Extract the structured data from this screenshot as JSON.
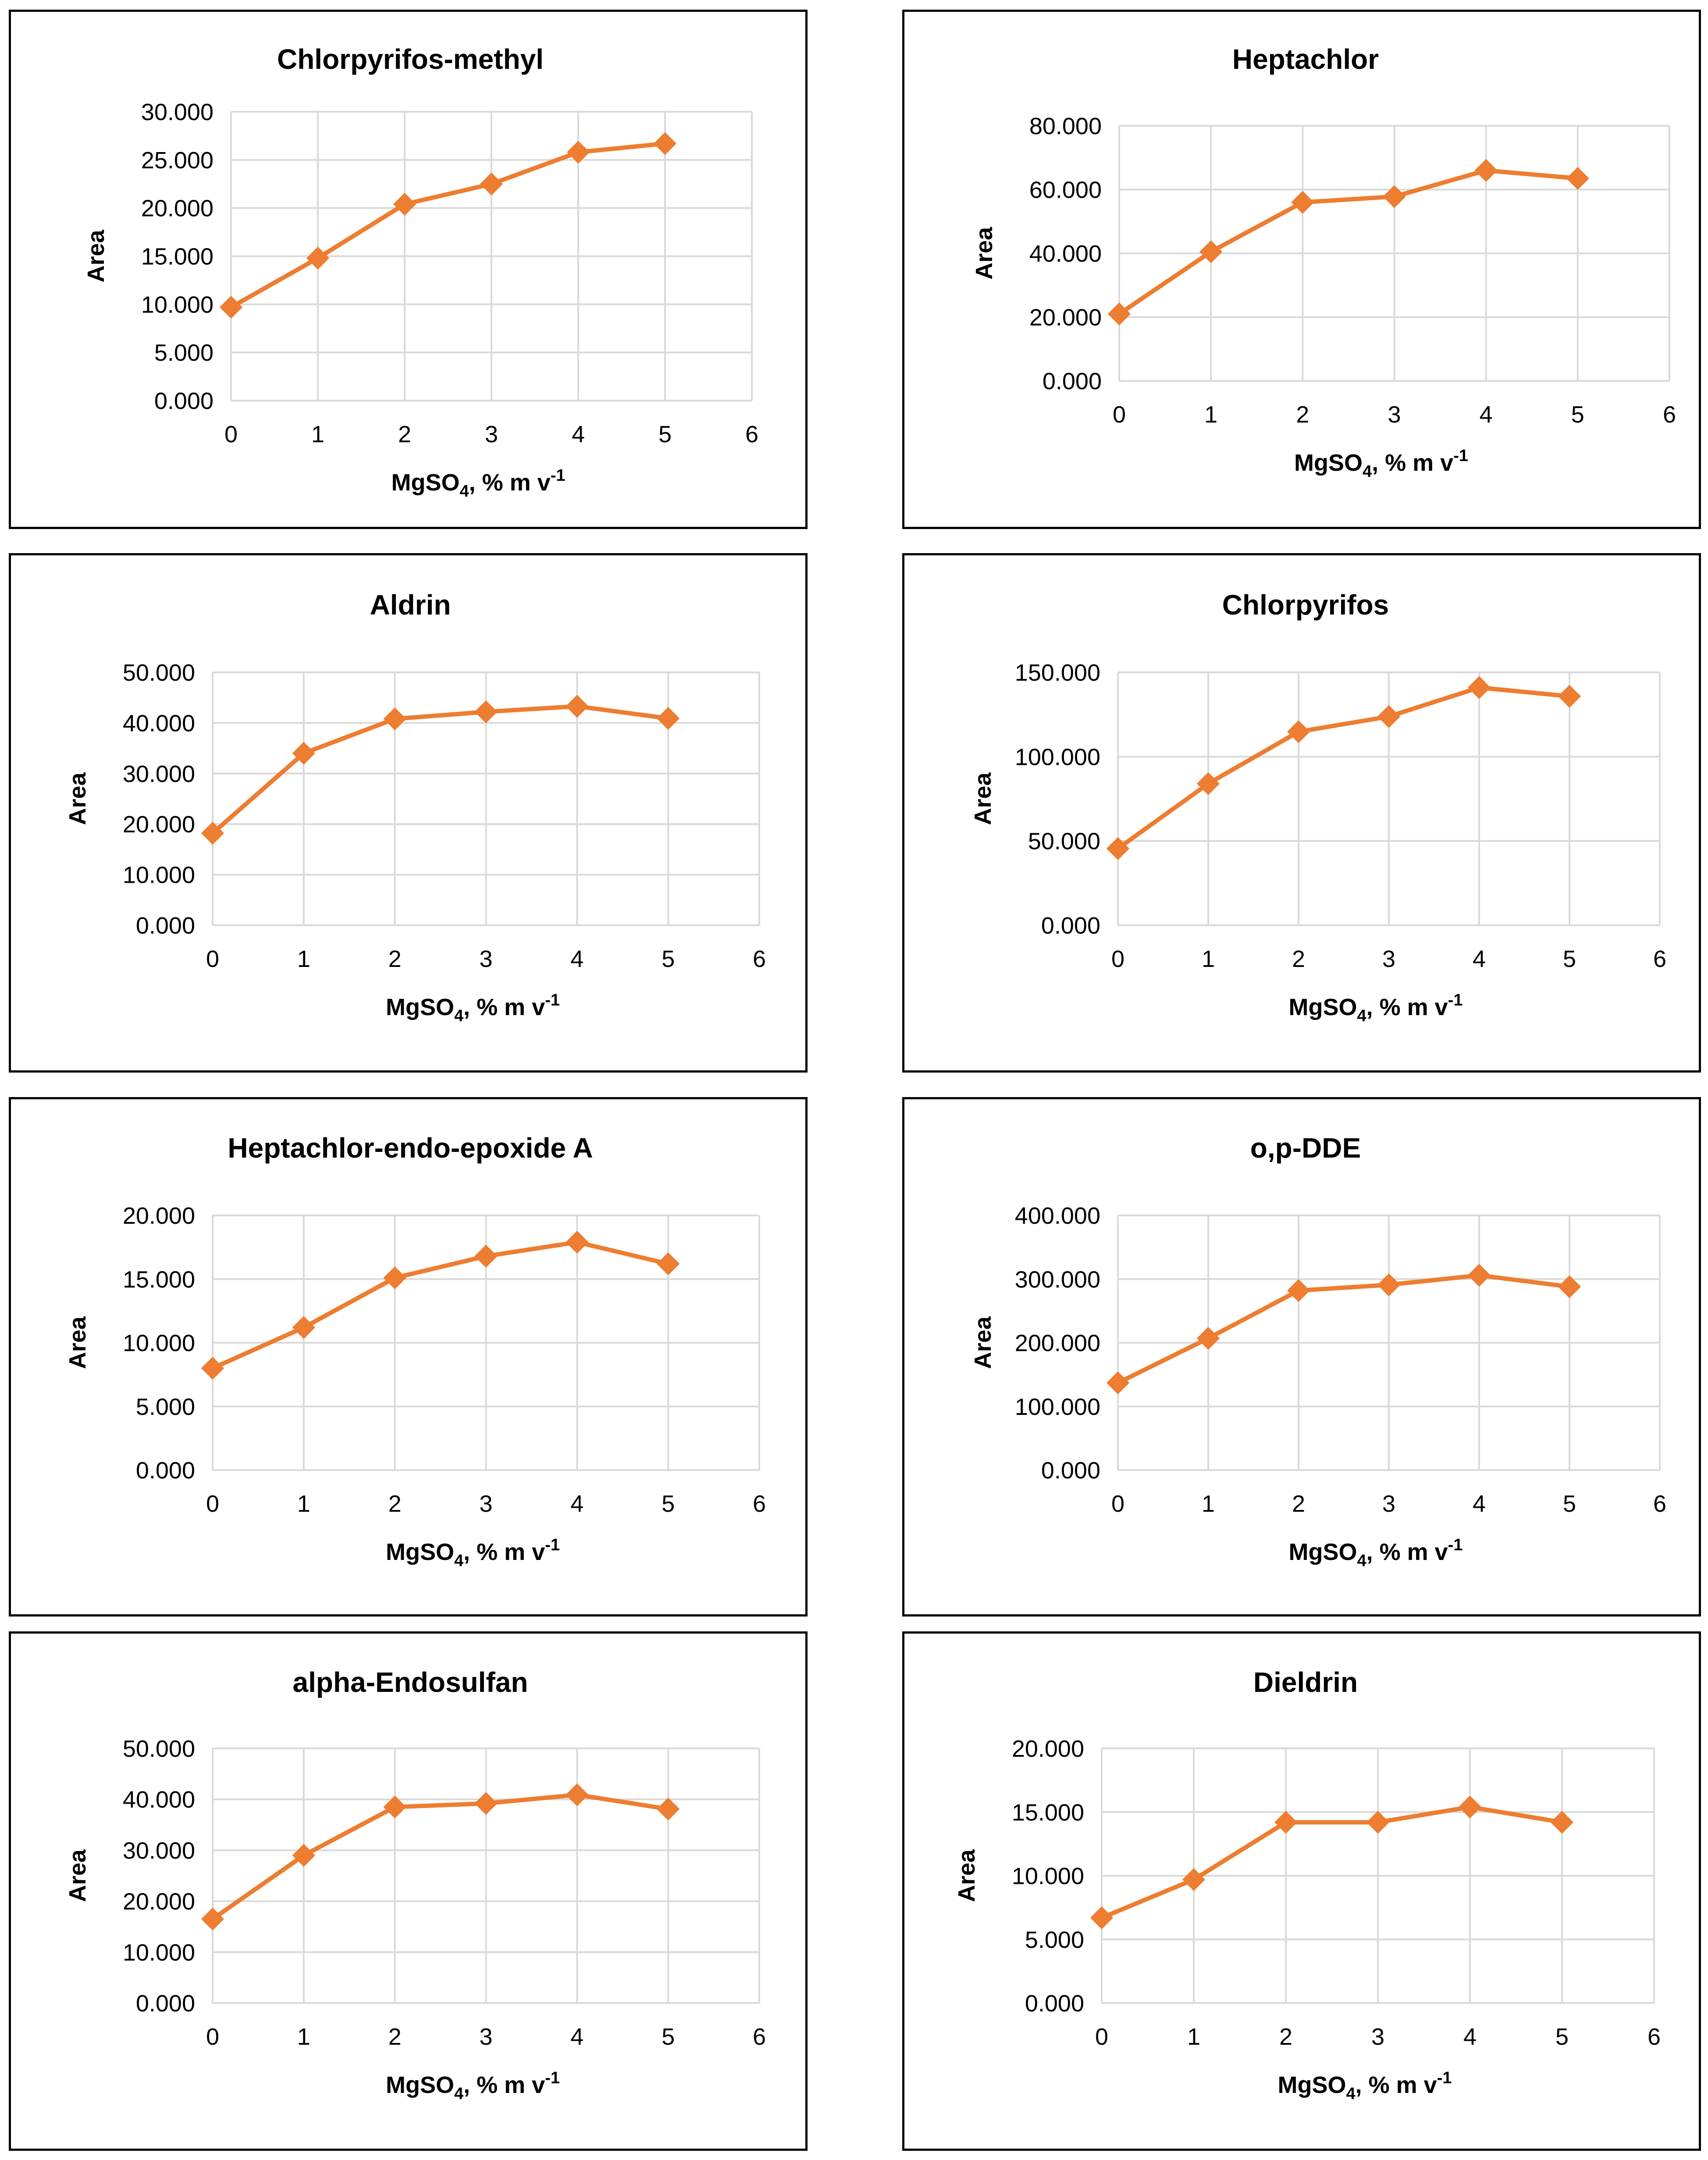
{
  "series_color": "#ED7D31",
  "chart_data": [
    {
      "type": "line",
      "title": "Chlorpyrifos-methyl",
      "xlabel": "MgSO",
      "xlabel_subscript": "4",
      "xlabel_suffix": ", % m v",
      "xlabel_superscript": "-1",
      "ylabel": "Area",
      "x": [
        0,
        1,
        2,
        3,
        4,
        5
      ],
      "values": [
        9.7,
        14.8,
        20.4,
        22.5,
        25.8,
        26.7
      ],
      "xlim": [
        0,
        6
      ],
      "xticks": [
        "0",
        "1",
        "2",
        "3",
        "4",
        "5",
        "6"
      ],
      "ylim": [
        0,
        30
      ],
      "yticks": [
        "0.000",
        "5.000",
        "10.000",
        "15.000",
        "20.000",
        "25.000",
        "30.000"
      ],
      "grid": true,
      "legend": "none"
    },
    {
      "type": "line",
      "title": "Heptachlor",
      "xlabel": "MgSO",
      "xlabel_subscript": "4",
      "xlabel_suffix": ", % m v",
      "xlabel_superscript": "-1",
      "ylabel": "Area",
      "x": [
        0,
        1,
        2,
        3,
        4,
        5
      ],
      "values": [
        21.0,
        40.5,
        56.0,
        57.8,
        66.0,
        63.5
      ],
      "xlim": [
        0,
        6
      ],
      "xticks": [
        "0",
        "1",
        "2",
        "3",
        "4",
        "5",
        "6"
      ],
      "ylim": [
        0,
        80
      ],
      "yticks": [
        "0.000",
        "20.000",
        "40.000",
        "60.000",
        "80.000"
      ],
      "grid": true,
      "legend": "none"
    },
    {
      "type": "line",
      "title": "Aldrin",
      "xlabel": "MgSO",
      "xlabel_subscript": "4",
      "xlabel_suffix": ", % m v",
      "xlabel_superscript": "-1",
      "ylabel": "Area",
      "x": [
        0,
        1,
        2,
        3,
        4,
        5
      ],
      "values": [
        18.2,
        34.0,
        40.8,
        42.2,
        43.3,
        40.9
      ],
      "xlim": [
        0,
        6
      ],
      "xticks": [
        "0",
        "1",
        "2",
        "3",
        "4",
        "5",
        "6"
      ],
      "ylim": [
        0,
        50
      ],
      "yticks": [
        "0.000",
        "10.000",
        "20.000",
        "30.000",
        "40.000",
        "50.000"
      ],
      "grid": true,
      "legend": "none"
    },
    {
      "type": "line",
      "title": "Chlorpyrifos",
      "xlabel": "MgSO",
      "xlabel_subscript": "4",
      "xlabel_suffix": ", % m v",
      "xlabel_superscript": "-1",
      "ylabel": "Area",
      "x": [
        0,
        1,
        2,
        3,
        4,
        5
      ],
      "values": [
        45.5,
        84.0,
        114.8,
        123.8,
        141.0,
        135.8
      ],
      "xlim": [
        0,
        6
      ],
      "xticks": [
        "0",
        "1",
        "2",
        "3",
        "4",
        "5",
        "6"
      ],
      "ylim": [
        0,
        150
      ],
      "yticks": [
        "0.000",
        "50.000",
        "100.000",
        "150.000"
      ],
      "grid": true,
      "legend": "none"
    },
    {
      "type": "line",
      "title": "Heptachlor-endo-epoxide A",
      "xlabel": "MgSO",
      "xlabel_subscript": "4",
      "xlabel_suffix": ", % m v",
      "xlabel_superscript": "-1",
      "ylabel": "Area",
      "x": [
        0,
        1,
        2,
        3,
        4,
        5
      ],
      "values": [
        8.0,
        11.2,
        15.1,
        16.8,
        17.9,
        16.2
      ],
      "xlim": [
        0,
        6
      ],
      "xticks": [
        "0",
        "1",
        "2",
        "3",
        "4",
        "5",
        "6"
      ],
      "ylim": [
        0,
        20
      ],
      "yticks": [
        "0.000",
        "5.000",
        "10.000",
        "15.000",
        "20.000"
      ],
      "grid": true,
      "legend": "none"
    },
    {
      "type": "line",
      "title": "o,p-DDE",
      "xlabel": "MgSO",
      "xlabel_subscript": "4",
      "xlabel_suffix": ", % m v",
      "xlabel_superscript": "-1",
      "ylabel": "Area",
      "x": [
        0,
        1,
        2,
        3,
        4,
        5
      ],
      "values": [
        137.0,
        207.0,
        282.0,
        291.0,
        306.0,
        288.0
      ],
      "xlim": [
        0,
        6
      ],
      "xticks": [
        "0",
        "1",
        "2",
        "3",
        "4",
        "5",
        "6"
      ],
      "ylim": [
        0,
        400
      ],
      "yticks": [
        "0.000",
        "100.000",
        "200.000",
        "300.000",
        "400.000"
      ],
      "grid": true,
      "legend": "none"
    },
    {
      "type": "line",
      "title": "alpha-Endosulfan",
      "xlabel": "MgSO",
      "xlabel_subscript": "4",
      "xlabel_suffix": ", % m v",
      "xlabel_superscript": "-1",
      "ylabel": "Area",
      "x": [
        0,
        1,
        2,
        3,
        4,
        5
      ],
      "values": [
        16.5,
        29.0,
        38.5,
        39.2,
        40.9,
        38.1
      ],
      "xlim": [
        0,
        6
      ],
      "xticks": [
        "0",
        "1",
        "2",
        "3",
        "4",
        "5",
        "6"
      ],
      "ylim": [
        0,
        50
      ],
      "yticks": [
        "0.000",
        "10.000",
        "20.000",
        "30.000",
        "40.000",
        "50.000"
      ],
      "grid": true,
      "legend": "none"
    },
    {
      "type": "line",
      "title": "Dieldrin",
      "xlabel": "MgSO",
      "xlabel_subscript": "4",
      "xlabel_suffix": ", % m v",
      "xlabel_superscript": "-1",
      "ylabel": "Area",
      "x": [
        0,
        1,
        2,
        3,
        4,
        5
      ],
      "values": [
        6.7,
        9.7,
        14.2,
        14.2,
        15.4,
        14.2
      ],
      "xlim": [
        0,
        6
      ],
      "xticks": [
        "0",
        "1",
        "2",
        "3",
        "4",
        "5",
        "6"
      ],
      "ylim": [
        0,
        20
      ],
      "yticks": [
        "0.000",
        "5.000",
        "10.000",
        "15.000",
        "20.000"
      ],
      "grid": true,
      "legend": "none"
    }
  ]
}
